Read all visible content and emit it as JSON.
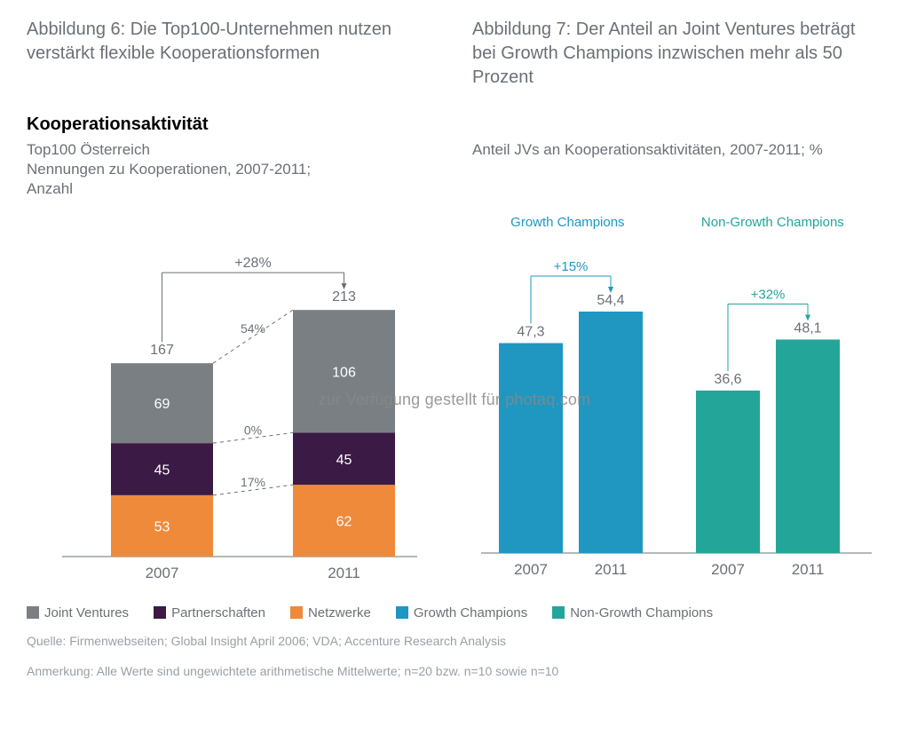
{
  "colors": {
    "grey_text": "#6b7076",
    "light_grey": "#9a9fa5",
    "joint_ventures": "#7a7f84",
    "partnerships": "#3b1a45",
    "networks": "#ee8a3a",
    "growth_champions": "#1f97c1",
    "non_growth_champions": "#24a59a",
    "axis": "#6b7076"
  },
  "figure6": {
    "title": "Abbildung 6: Die Top100-Unternehmen nutzen verstärkt flexible Kooperationsformen",
    "section_title": "Kooperationsaktivität",
    "subtitle_line1": "Top100 Österreich",
    "subtitle_line2": "Nennungen zu Kooperationen, 2007-2011;",
    "subtitle_line3": "Anzahl",
    "top_growth": "+28%",
    "categories": [
      "2007",
      "2011"
    ],
    "totals": [
      167,
      213
    ],
    "stacks": {
      "2007": {
        "networks": 53,
        "partnerships": 45,
        "joint_ventures": 69
      },
      "2011": {
        "networks": 62,
        "partnerships": 45,
        "joint_ventures": 106
      }
    },
    "connector_labels": [
      "54%",
      "0%",
      "17%"
    ],
    "legend": [
      {
        "label": "Joint Ventures",
        "color_key": "joint_ventures"
      },
      {
        "label": "Partnerschaften",
        "color_key": "partnerships"
      },
      {
        "label": "Netzwerke",
        "color_key": "networks"
      }
    ]
  },
  "figure7": {
    "title": "Abbildung 7: Der Anteil an Joint Ventures beträgt bei Growth Champions inzwischen mehr als 50 Prozent",
    "subtitle": "Anteil JVs an Kooperationsaktivitäten, 2007-2011; %",
    "groups": [
      {
        "name": "Growth Champions",
        "color_key": "growth_champions",
        "growth": "+15%",
        "bars": [
          {
            "year": "2007",
            "value": 47.3,
            "label": "47,3"
          },
          {
            "year": "2011",
            "value": 54.4,
            "label": "54,4"
          }
        ]
      },
      {
        "name": "Non-Growth Champions",
        "color_key": "non_growth_champions",
        "growth": "+32%",
        "bars": [
          {
            "year": "2007",
            "value": 36.6,
            "label": "36,6"
          },
          {
            "year": "2011",
            "value": 48.1,
            "label": "48,1"
          }
        ]
      }
    ],
    "legend": [
      {
        "label": "Growth Champions",
        "color_key": "growth_champions"
      },
      {
        "label": "Non-Growth Champions",
        "color_key": "non_growth_champions"
      }
    ],
    "ymax": 60
  },
  "source_line": "Quelle: Firmenwebseiten; Global Insight April 2006; VDA; Accenture Research Analysis",
  "note_line": "Anmerkung: Alle Werte sind ungewichtete arithmetische Mittelwerte; n=20 bzw. n=10 sowie n=10",
  "watermark": "zur Verfügung gestellt für photaq.com"
}
